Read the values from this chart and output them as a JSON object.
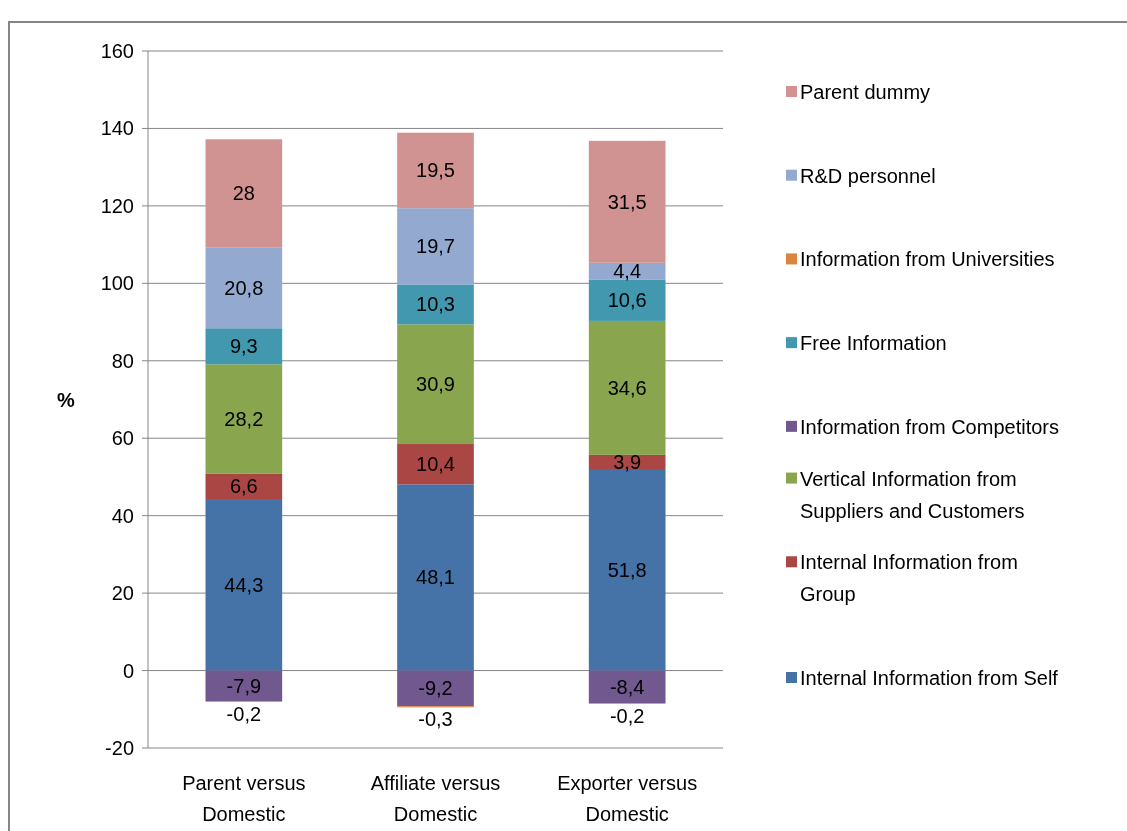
{
  "chart_data": {
    "type": "bar",
    "stacked": true,
    "ylabel": "%",
    "categories": [
      "Parent versus Domestic",
      "Affiliate versus Domestic",
      "Exporter versus Domestic"
    ],
    "series": [
      {
        "name": "Internal Information from Self",
        "color": "#4572a7",
        "values": [
          44.3,
          48.1,
          51.8
        ],
        "value_labels": [
          "44,3",
          "48,1",
          "51,8"
        ]
      },
      {
        "name": "Internal Information from Group",
        "color": "#aa4643",
        "values": [
          6.6,
          10.4,
          3.9
        ],
        "value_labels": [
          "6,6",
          "10,4",
          "3,9"
        ]
      },
      {
        "name": "Vertical Information from Suppliers and Customers",
        "color": "#89a54e",
        "values": [
          28.2,
          30.9,
          34.6
        ],
        "value_labels": [
          "28,2",
          "30,9",
          "34,6"
        ]
      },
      {
        "name": "Information from Competitors",
        "color": "#71588f",
        "values": [
          -7.9,
          -9.2,
          -8.4
        ],
        "value_labels": [
          "-7,9",
          "-9,2",
          "-8,4"
        ]
      },
      {
        "name": "Free Information",
        "color": "#4198af",
        "values": [
          9.3,
          10.3,
          10.6
        ],
        "value_labels": [
          "9,3",
          "10,3",
          "10,6"
        ]
      },
      {
        "name": "Information from Universities",
        "color": "#db843d",
        "values": [
          -0.2,
          -0.3,
          -0.2
        ],
        "value_labels": [
          "-0,2",
          "-0,3",
          "-0,2"
        ]
      },
      {
        "name": "R&D personnel",
        "color": "#93a9cf",
        "values": [
          20.8,
          19.7,
          4.4
        ],
        "value_labels": [
          "20,8",
          "19,7",
          "4,4"
        ]
      },
      {
        "name": "Parent dummy",
        "color": "#d19392",
        "values": [
          28,
          19.5,
          31.5
        ],
        "value_labels": [
          "28",
          "19,5",
          "31,5"
        ]
      }
    ],
    "ylim": [
      -20,
      160
    ],
    "yticks": [
      -20,
      0,
      20,
      40,
      60,
      80,
      100,
      120,
      140,
      160
    ],
    "grid": "y",
    "legend": "right"
  }
}
